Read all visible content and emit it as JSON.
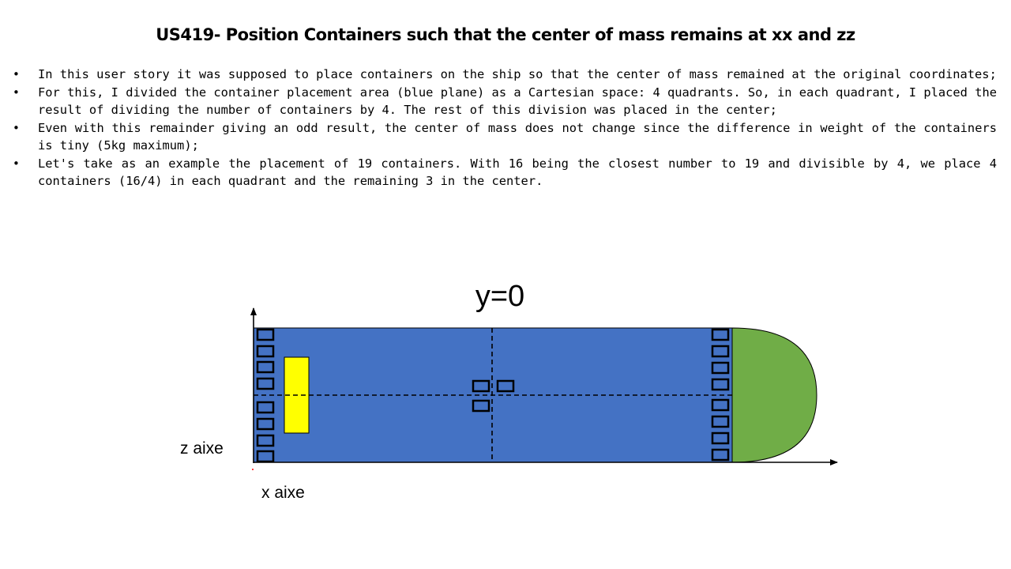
{
  "slide": {
    "title": "US419- Position Containers such that the center of mass remains at xx and zz",
    "bullets": [
      "In this user story it was supposed to place containers on the ship so that the center of mass remained at the original coordinates;",
      "For this, I divided the container placement area (blue plane) as a Cartesian space: 4 quadrants. So, in each quadrant, I placed the result of dividing the number of containers by 4. The rest of this division was placed in the center;",
      "Even with this remainder giving an odd result, the center of mass does not change since the difference in weight of the containers is tiny (5kg maximum);",
      "Let's take as an example the placement of 19 containers. With 16 being the closest number to 19 and divisible by 4, we place 4 containers (16/4) in each quadrant and the remaining 3 in the center."
    ]
  },
  "diagram": {
    "view_label": "y=0",
    "z_axis_label": "z aixe",
    "x_axis_label": "x aixe",
    "colors": {
      "deck": "#4472c4",
      "bow": "#70ad47",
      "bridge": "#ffff00",
      "outline": "#000000"
    },
    "containers": {
      "left_column_count": 8,
      "right_column_count": 8,
      "center_count": 3
    }
  }
}
